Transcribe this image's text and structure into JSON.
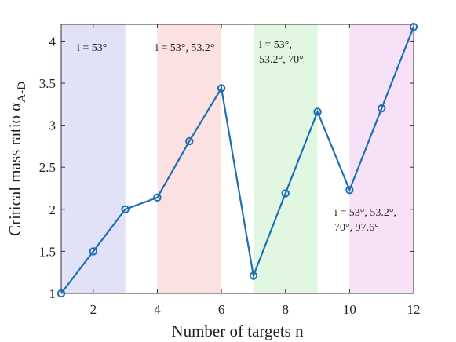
{
  "chart_data": {
    "type": "line",
    "x": [
      1,
      2,
      3,
      4,
      5,
      6,
      7,
      8,
      9,
      10,
      11,
      12
    ],
    "series": [
      {
        "values": [
          1.0,
          1.5,
          2.0,
          2.14,
          2.81,
          3.44,
          1.21,
          2.19,
          3.16,
          2.23,
          3.2,
          4.17
        ]
      }
    ],
    "xlim": [
      1,
      12
    ],
    "ylim": [
      1,
      4.2
    ],
    "xticks": [
      2,
      4,
      6,
      8,
      10,
      12
    ],
    "xtick_labels": [
      "2",
      "4",
      "6",
      "8",
      "10",
      "12"
    ],
    "yticks": [
      1,
      1.5,
      2,
      2.5,
      3,
      3.5,
      4
    ],
    "ytick_labels": [
      "1",
      "1.5",
      "2",
      "2.5",
      "3",
      "3.5",
      "4"
    ],
    "xlabel": "Number of targets n",
    "ylabel_main": "Critical mass ratio α",
    "ylabel_sub": "A-D",
    "grid": false,
    "regions": [
      {
        "x": [
          1,
          3
        ],
        "color": "#e1e1f7",
        "label_lines": [
          "i = 53°"
        ]
      },
      {
        "x": [
          4,
          6
        ],
        "color": "#fbe1e1",
        "label_lines": [
          "i = 53°, 53.2°"
        ]
      },
      {
        "x": [
          7,
          9
        ],
        "color": "#e1f7e1",
        "label_lines": [
          "i = 53°,",
          "53.2°, 70°"
        ]
      },
      {
        "x": [
          10,
          12
        ],
        "color": "#f7e1f7",
        "label_lines": [
          "i = 53°, 53.2°,",
          "70°, 97.6°"
        ]
      }
    ],
    "line_color": "#1f6fb2"
  }
}
